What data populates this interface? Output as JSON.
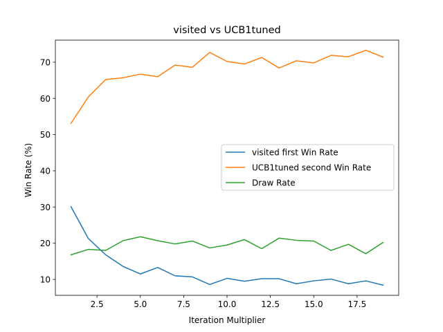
{
  "chart_data": {
    "type": "line",
    "title": "visited vs UCB1tuned",
    "xlabel": "Iteration Multiplier",
    "ylabel": "Win Rate (%)",
    "xlim": [
      0.1,
      19.9
    ],
    "ylim": [
      5.6,
      76.1
    ],
    "xticks": [
      2.5,
      5.0,
      7.5,
      10.0,
      12.5,
      15.0,
      17.5
    ],
    "xtick_labels": [
      "2.5",
      "5.0",
      "7.5",
      "10.0",
      "12.5",
      "15.0",
      "17.5"
    ],
    "yticks": [
      10,
      20,
      30,
      40,
      50,
      60,
      70
    ],
    "ytick_labels": [
      "10",
      "20",
      "30",
      "40",
      "50",
      "60",
      "70"
    ],
    "grid": false,
    "legend_position": "center-right",
    "x": [
      1,
      2,
      3,
      4,
      5,
      6,
      7,
      8,
      9,
      10,
      11,
      12,
      13,
      14,
      15,
      16,
      17,
      18,
      19
    ],
    "series": [
      {
        "name": "visited first Win Rate",
        "color": "#1f77b4",
        "values": [
          30.1,
          21.3,
          16.8,
          13.6,
          11.5,
          13.3,
          11.0,
          10.7,
          8.6,
          10.3,
          9.5,
          10.2,
          10.2,
          8.8,
          9.6,
          10.1,
          8.8,
          9.6,
          8.4
        ]
      },
      {
        "name": "UCB1tuned second Win Rate",
        "color": "#ff7f0e",
        "values": [
          53.1,
          60.4,
          65.2,
          65.7,
          66.7,
          66.0,
          69.2,
          68.6,
          72.7,
          70.2,
          69.5,
          71.3,
          68.4,
          70.4,
          69.8,
          71.9,
          71.5,
          73.3,
          71.4
        ]
      },
      {
        "name": "Draw Rate",
        "color": "#2ca02c",
        "values": [
          16.8,
          18.3,
          18.0,
          20.7,
          21.8,
          20.7,
          19.8,
          20.6,
          18.7,
          19.5,
          21.0,
          18.5,
          21.4,
          20.8,
          20.6,
          18.0,
          19.7,
          17.1,
          20.2
        ]
      }
    ]
  }
}
